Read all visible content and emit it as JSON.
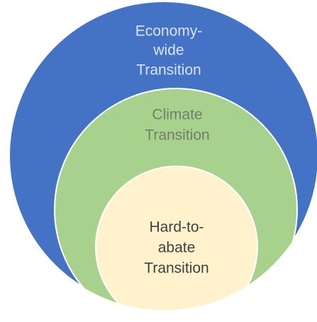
{
  "nodes": [
    {
      "label": [
        "Economy-",
        "wide",
        "Transition"
      ]
    },
    {
      "label": [
        "Climate",
        "Transition"
      ]
    },
    {
      "label": [
        "Hard-to-",
        "abate",
        "Transition"
      ]
    }
  ]
}
